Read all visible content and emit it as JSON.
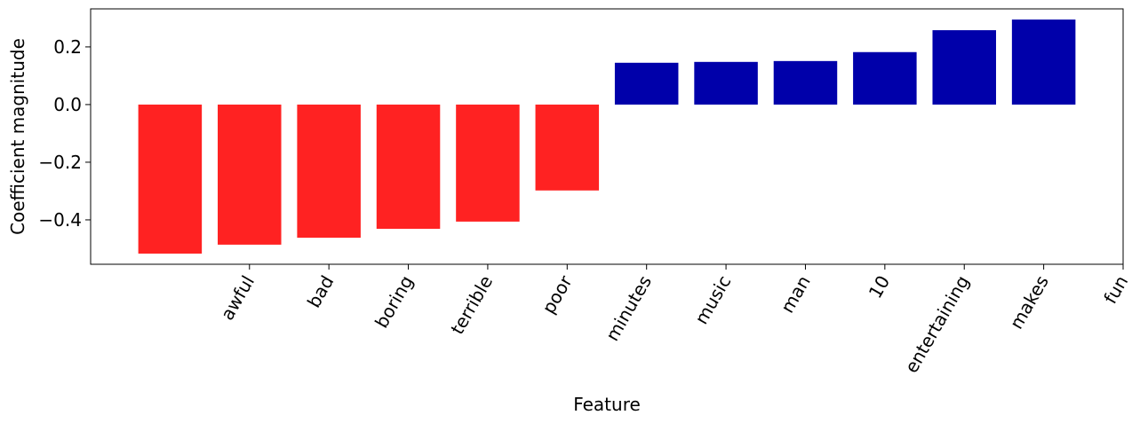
{
  "chart_data": {
    "type": "bar",
    "x": [
      0,
      1,
      2,
      3,
      4,
      5,
      6,
      7,
      8,
      9,
      10,
      11
    ],
    "values": [
      -0.517,
      -0.486,
      -0.462,
      -0.431,
      -0.406,
      -0.298,
      0.145,
      0.148,
      0.151,
      0.182,
      0.258,
      0.295
    ],
    "colors": [
      "#ff2222",
      "#ff2222",
      "#ff2222",
      "#ff2222",
      "#ff2222",
      "#ff2222",
      "#0000aa",
      "#0000aa",
      "#0000aa",
      "#0000aa",
      "#0000aa",
      "#0000aa"
    ],
    "xlim": [
      -1,
      12
    ],
    "xticks": [
      {
        "value": 1,
        "label": "awful"
      },
      {
        "value": 2,
        "label": "bad"
      },
      {
        "value": 3,
        "label": "boring"
      },
      {
        "value": 4,
        "label": "terrible"
      },
      {
        "value": 5,
        "label": "poor"
      },
      {
        "value": 6,
        "label": "minutes"
      },
      {
        "value": 7,
        "label": "music"
      },
      {
        "value": 8,
        "label": "man"
      },
      {
        "value": 9,
        "label": "10"
      },
      {
        "value": 10,
        "label": "entertaining"
      },
      {
        "value": 11,
        "label": "makes"
      },
      {
        "value": 12,
        "label": "fun"
      }
    ],
    "ylim": [
      -0.554,
      0.332
    ],
    "yticks": [
      {
        "value": -0.4,
        "label": "−0.4"
      },
      {
        "value": -0.2,
        "label": "−0.2"
      },
      {
        "value": 0,
        "label": "0.0"
      },
      0.2
    ],
    "xlabel": "Feature",
    "ylabel": "Coefficient magnitude"
  }
}
